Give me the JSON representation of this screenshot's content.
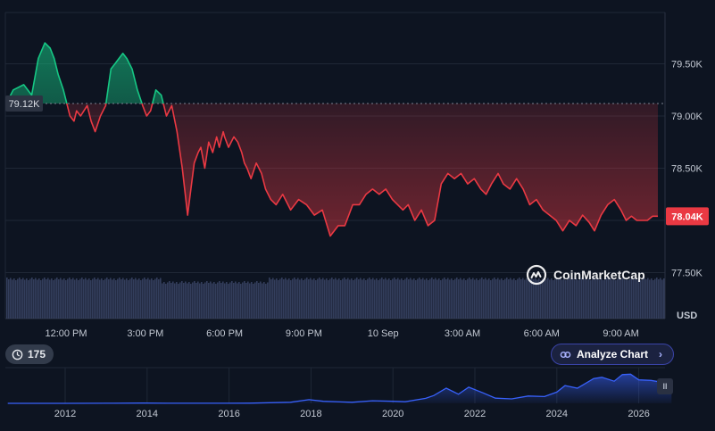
{
  "chart_data": [
    {
      "type": "area",
      "currency": "USD",
      "baseline": 79120,
      "baseline_label": "79.12K",
      "last_price": 78040,
      "last_price_label": "78.04K",
      "y_ticks": [
        "79.50K",
        "79.00K",
        "78.50K",
        "78.00K",
        "77.50K"
      ],
      "y_tick_values": [
        79500,
        79000,
        78500,
        78000,
        77500
      ],
      "ylim": [
        77500,
        80000
      ],
      "x_ticks": [
        "12:00 PM",
        "3:00 PM",
        "6:00 PM",
        "9:00 PM",
        "10 Sep",
        "3:00 AM",
        "6:00 AM",
        "9:00 AM"
      ],
      "x_tick_hours": [
        0,
        3,
        6,
        9,
        12,
        15,
        18,
        21
      ],
      "xlim_hours": [
        -2.2,
        22.4
      ],
      "series": [
        {
          "values_hours": [
            -2.2,
            -2.0,
            -1.6,
            -1.3,
            -1.05,
            -0.8,
            -0.6,
            -0.45,
            -0.3,
            -0.1,
            0.15,
            0.3,
            0.4,
            0.55,
            0.8,
            0.95,
            1.1,
            1.3,
            1.5,
            1.7,
            1.85,
            2.0,
            2.15,
            2.3,
            2.5,
            2.7,
            2.9,
            3.05,
            3.2,
            3.4,
            3.6,
            3.8,
            4.0,
            4.2,
            4.4,
            4.6,
            4.7,
            4.85,
            5.0,
            5.1,
            5.25,
            5.4,
            5.55,
            5.7,
            5.8,
            5.95,
            6.0,
            6.15,
            6.25,
            6.35,
            6.5,
            6.65,
            6.75,
            6.85,
            7.0,
            7.2,
            7.4,
            7.55,
            7.75,
            7.95,
            8.2,
            8.5,
            8.8,
            9.1,
            9.4,
            9.7,
            10.0,
            10.3,
            10.55,
            10.85,
            11.1,
            11.35,
            11.6,
            11.85,
            12.1,
            12.35,
            12.55,
            12.75,
            12.95,
            13.2,
            13.45,
            13.7,
            13.95,
            14.2,
            14.45,
            14.7,
            14.95,
            15.2,
            15.45,
            15.7,
            15.9,
            16.1,
            16.35,
            16.55,
            16.8,
            17.05,
            17.3,
            17.55,
            17.8,
            18.05,
            18.3,
            18.55,
            18.8,
            19.05,
            19.3,
            19.55,
            19.8,
            20.0,
            20.25,
            20.5,
            20.75,
            21.0,
            21.2,
            21.4,
            21.6,
            21.8,
            22.0,
            22.2,
            22.4
          ],
          "values_usd": [
            79150,
            79250,
            79300,
            79200,
            79550,
            79700,
            79650,
            79550,
            79400,
            79250,
            79000,
            78950,
            79050,
            79000,
            79100,
            78950,
            78850,
            79000,
            79100,
            79450,
            79500,
            79550,
            79600,
            79550,
            79450,
            79250,
            79100,
            79000,
            79050,
            79250,
            79200,
            79000,
            79100,
            78850,
            78500,
            78050,
            78250,
            78550,
            78650,
            78700,
            78500,
            78750,
            78650,
            78800,
            78700,
            78850,
            78800,
            78700,
            78750,
            78800,
            78750,
            78650,
            78550,
            78500,
            78400,
            78550,
            78450,
            78300,
            78200,
            78150,
            78250,
            78100,
            78200,
            78150,
            78050,
            78100,
            77850,
            77950,
            77950,
            78150,
            78150,
            78250,
            78300,
            78250,
            78300,
            78200,
            78150,
            78100,
            78150,
            78000,
            78100,
            77950,
            78000,
            78350,
            78450,
            78400,
            78450,
            78350,
            78400,
            78300,
            78250,
            78350,
            78450,
            78350,
            78300,
            78400,
            78300,
            78150,
            78200,
            78100,
            78050,
            78000,
            77900,
            78000,
            77950,
            78050,
            77980,
            77900,
            78050,
            78150,
            78200,
            78100,
            78000,
            78040,
            78000,
            78000,
            78000,
            78040,
            78040
          ]
        }
      ],
      "colors": {
        "up": "#16c784",
        "down": "#ea3943",
        "baseline": "#7a8291",
        "grid": "#1f2736"
      }
    },
    {
      "type": "area",
      "x_ticks": [
        "2012",
        "2014",
        "2016",
        "2018",
        "2020",
        "2022",
        "2024",
        "2026"
      ],
      "x_tick_years": [
        2012,
        2014,
        2016,
        2018,
        2020,
        2022,
        2024,
        2026
      ],
      "xlim_years": [
        2010.6,
        2026.8
      ],
      "series": [
        {
          "years": [
            2010.6,
            2012,
            2013,
            2013.9,
            2014.5,
            2015.5,
            2016.5,
            2017.5,
            2017.95,
            2018.3,
            2019.0,
            2019.5,
            2020.0,
            2020.3,
            2020.8,
            2021.0,
            2021.3,
            2021.6,
            2021.85,
            2022.2,
            2022.5,
            2022.9,
            2023.3,
            2023.7,
            2024.0,
            2024.2,
            2024.5,
            2024.9,
            2025.1,
            2025.4,
            2025.6,
            2025.8,
            2026.0,
            2026.3,
            2026.6,
            2026.8
          ],
          "usd": [
            0,
            100,
            200,
            900,
            500,
            300,
            700,
            4000,
            14000,
            8000,
            4000,
            10000,
            8000,
            6000,
            19000,
            30000,
            58000,
            35000,
            62000,
            40000,
            20000,
            17000,
            28000,
            26000,
            43000,
            68000,
            58000,
            95000,
            100000,
            85000,
            110000,
            112000,
            90000,
            88000,
            80000,
            79000
          ]
        }
      ],
      "ylim": [
        0,
        130000
      ]
    }
  ],
  "badge": {
    "count": "175"
  },
  "analyze": {
    "label": "Analyze Chart",
    "chevron": "›"
  },
  "brand": {
    "name": "CoinMarketCap"
  },
  "pause": {
    "label": "II"
  }
}
